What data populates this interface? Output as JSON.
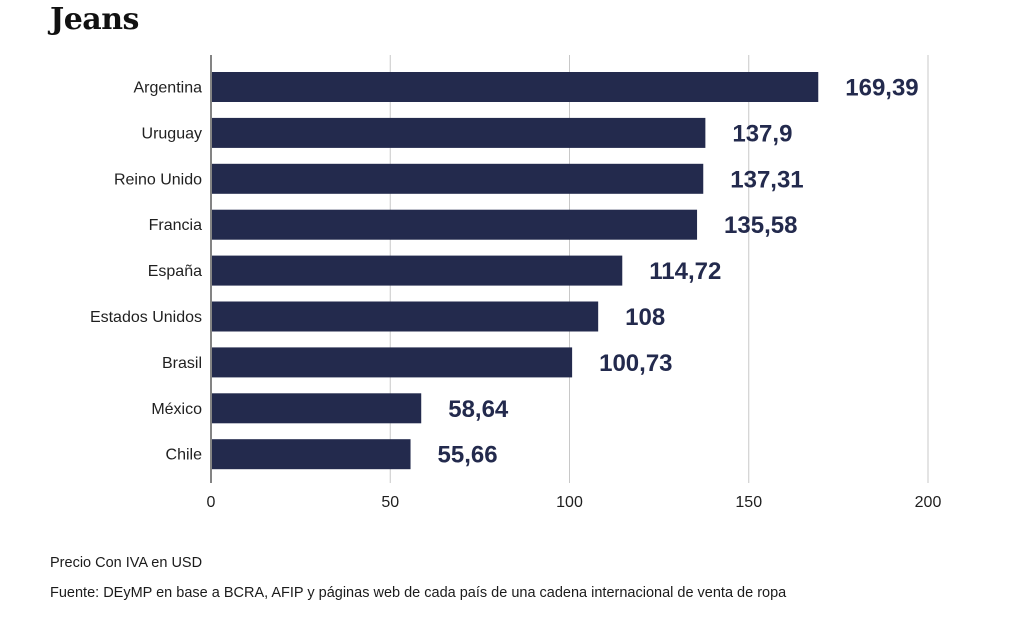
{
  "header": {
    "title": "Jeans"
  },
  "chart_data": {
    "type": "bar",
    "orientation": "horizontal",
    "title": "Jeans",
    "categories": [
      "Argentina",
      "Uruguay",
      "Reino Unido",
      "Francia",
      "España",
      "Estados Unidos",
      "Brasil",
      "México",
      "Chile"
    ],
    "values": [
      169.39,
      137.9,
      137.31,
      135.58,
      114.72,
      108,
      100.73,
      58.64,
      55.66
    ],
    "value_labels": [
      "169,39",
      "137,9",
      "137,31",
      "135,58",
      "114,72",
      "108",
      "100,73",
      "58,64",
      "55,66"
    ],
    "xlim": [
      0,
      200
    ],
    "x_ticks": [
      0,
      50,
      100,
      150,
      200
    ],
    "x_tick_labels": [
      "0",
      "50",
      "100",
      "150",
      "200"
    ],
    "grid": "vertical",
    "bar_color": "#232a4d",
    "grid_color": "#c8c8c8",
    "value_label_color": "#232a4d"
  },
  "footer": {
    "unit_note": "Precio Con IVA en USD",
    "source": "Fuente: DEyMP en base a BCRA, AFIP y páginas web de cada país de una cadena internacional de venta de ropa"
  }
}
